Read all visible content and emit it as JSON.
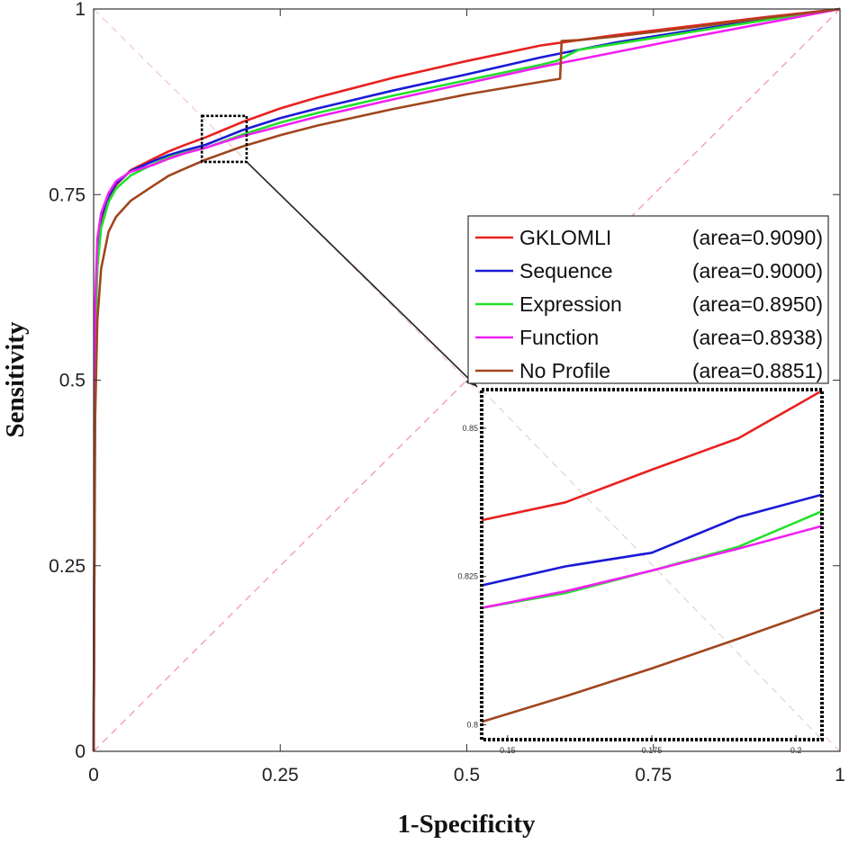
{
  "chart_data": {
    "type": "line",
    "title": "",
    "xlabel": "1-Specificity",
    "ylabel": "Sensitivity",
    "xlim": [
      0,
      1
    ],
    "ylim": [
      0,
      1
    ],
    "xticks": [
      "0",
      "0.25",
      "0.5",
      "0.75",
      "1"
    ],
    "yticks": [
      "0",
      "0.25",
      "0.5",
      "0.75",
      "1"
    ],
    "grid": false,
    "legend_position": "right",
    "diagonal_reference": true,
    "series": [
      {
        "name": "GKLOMLI",
        "area_label": "(area=0.9090)",
        "color": "#e8211f",
        "x": [
          0,
          0.002,
          0.005,
          0.01,
          0.02,
          0.03,
          0.05,
          0.08,
          0.1,
          0.12,
          0.15,
          0.2,
          0.25,
          0.3,
          0.4,
          0.5,
          0.6,
          0.7,
          0.8,
          0.9,
          1.0
        ],
        "y": [
          0,
          0.55,
          0.66,
          0.715,
          0.745,
          0.763,
          0.783,
          0.798,
          0.808,
          0.816,
          0.827,
          0.848,
          0.866,
          0.881,
          0.907,
          0.93,
          0.951,
          0.965,
          0.977,
          0.989,
          1.0
        ]
      },
      {
        "name": "Sequence",
        "area_label": "(area=0.9000)",
        "color": "#1a1ad6",
        "x": [
          0,
          0.002,
          0.005,
          0.01,
          0.02,
          0.03,
          0.05,
          0.08,
          0.1,
          0.12,
          0.15,
          0.2,
          0.25,
          0.3,
          0.4,
          0.5,
          0.6,
          0.7,
          0.8,
          0.9,
          1.0
        ],
        "y": [
          0,
          0.57,
          0.67,
          0.72,
          0.748,
          0.765,
          0.782,
          0.795,
          0.803,
          0.809,
          0.817,
          0.837,
          0.853,
          0.866,
          0.89,
          0.912,
          0.935,
          0.955,
          0.971,
          0.986,
          1.0
        ]
      },
      {
        "name": "Expression",
        "area_label": "(area=0.8950)",
        "color": "#22e02a",
        "x": [
          0,
          0.002,
          0.005,
          0.01,
          0.02,
          0.03,
          0.05,
          0.08,
          0.1,
          0.12,
          0.15,
          0.2,
          0.25,
          0.3,
          0.4,
          0.5,
          0.6,
          0.62,
          0.65,
          0.7,
          0.8,
          0.9,
          1.0
        ],
        "y": [
          0,
          0.55,
          0.65,
          0.705,
          0.74,
          0.758,
          0.776,
          0.791,
          0.8,
          0.806,
          0.813,
          0.831,
          0.847,
          0.86,
          0.883,
          0.904,
          0.925,
          0.93,
          0.945,
          0.953,
          0.969,
          0.985,
          1.0
        ]
      },
      {
        "name": "Function",
        "area_label": "(area=0.8938)",
        "color": "#f21ff2",
        "x": [
          0,
          0.002,
          0.005,
          0.01,
          0.02,
          0.03,
          0.05,
          0.08,
          0.1,
          0.12,
          0.15,
          0.2,
          0.25,
          0.3,
          0.4,
          0.5,
          0.6,
          0.7,
          0.8,
          0.9,
          1.0
        ],
        "y": [
          0,
          0.6,
          0.69,
          0.725,
          0.752,
          0.768,
          0.781,
          0.79,
          0.798,
          0.805,
          0.813,
          0.829,
          0.842,
          0.855,
          0.878,
          0.9,
          0.922,
          0.942,
          0.962,
          0.981,
          1.0
        ]
      },
      {
        "name": "No Profile",
        "area_label": "(area=0.8851)",
        "color": "#a0461d",
        "x": [
          0,
          0.002,
          0.005,
          0.01,
          0.02,
          0.03,
          0.05,
          0.08,
          0.1,
          0.12,
          0.15,
          0.2,
          0.25,
          0.3,
          0.4,
          0.5,
          0.6,
          0.625,
          0.627,
          0.65,
          0.7,
          0.8,
          0.9,
          1.0
        ],
        "y": [
          0,
          0.45,
          0.58,
          0.65,
          0.7,
          0.72,
          0.742,
          0.762,
          0.775,
          0.784,
          0.797,
          0.815,
          0.83,
          0.843,
          0.865,
          0.885,
          0.902,
          0.906,
          0.957,
          0.958,
          0.963,
          0.975,
          0.988,
          1.0
        ]
      }
    ],
    "zoom_region": {
      "xlim": [
        0.145,
        0.205
      ],
      "ylim": [
        0.794,
        0.856
      ]
    },
    "inset": {
      "xlim": [
        0.1455,
        0.2045
      ],
      "ylim": [
        0.7975,
        0.8565
      ],
      "xticks": [
        {
          "v": 0.15,
          "label": "0.15"
        },
        {
          "v": 0.175,
          "label": "0.175"
        },
        {
          "v": 0.2,
          "label": "0.2"
        }
      ],
      "yticks": [
        {
          "v": 0.8,
          "label": "0.8"
        },
        {
          "v": 0.825,
          "label": "0.825"
        },
        {
          "v": 0.85,
          "label": "0.85"
        }
      ],
      "series": [
        {
          "name": "GKLOMLI",
          "x": [
            0.1455,
            0.16,
            0.175,
            0.19,
            0.2045
          ],
          "y": [
            0.8345,
            0.8375,
            0.843,
            0.8483,
            0.8563
          ]
        },
        {
          "name": "Sequence",
          "x": [
            0.1455,
            0.16,
            0.175,
            0.19,
            0.2045
          ],
          "y": [
            0.8235,
            0.8267,
            0.829,
            0.835,
            0.8388
          ]
        },
        {
          "name": "Expression",
          "x": [
            0.1455,
            0.16,
            0.175,
            0.19,
            0.2045
          ],
          "y": [
            0.8197,
            0.8222,
            0.826,
            0.83,
            0.836
          ]
        },
        {
          "name": "Function",
          "x": [
            0.1455,
            0.16,
            0.175,
            0.19,
            0.2045
          ],
          "y": [
            0.8197,
            0.8225,
            0.826,
            0.8297,
            0.8335
          ]
        },
        {
          "name": "No Profile",
          "x": [
            0.1455,
            0.16,
            0.175,
            0.19,
            0.2045
          ],
          "y": [
            0.8005,
            0.8048,
            0.8095,
            0.8145,
            0.8195
          ]
        }
      ]
    }
  }
}
